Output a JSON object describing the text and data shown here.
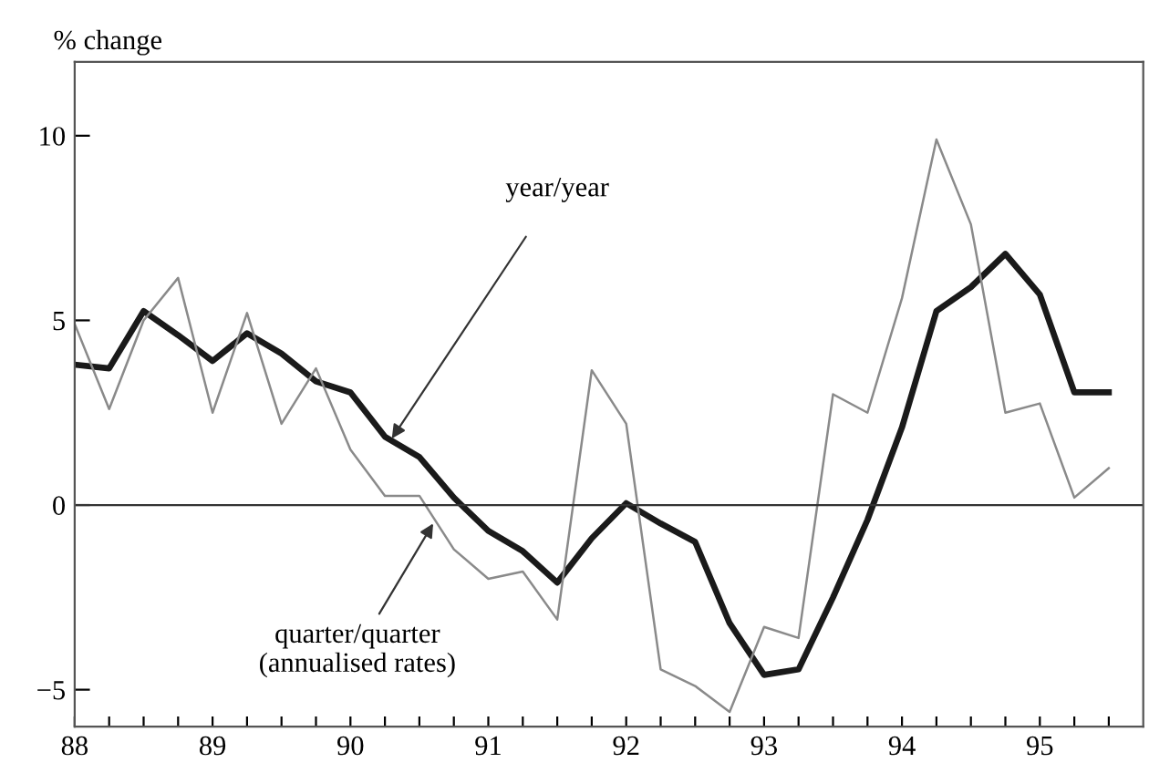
{
  "chart_data": {
    "type": "line",
    "ylabel": "% change",
    "x": [
      88.0,
      88.25,
      88.5,
      88.75,
      89.0,
      89.25,
      89.5,
      89.75,
      90.0,
      90.25,
      90.5,
      90.75,
      91.0,
      91.25,
      91.5,
      91.75,
      92.0,
      92.25,
      92.5,
      92.75,
      93.0,
      93.25,
      93.5,
      93.75,
      94.0,
      94.25,
      94.5,
      94.75,
      95.0,
      95.25,
      95.5
    ],
    "series": [
      {
        "color": "#1a1a1a",
        "values": [
          3.8,
          3.7,
          5.25,
          4.6,
          3.9,
          4.65,
          4.1,
          3.35,
          3.05,
          1.85,
          1.3,
          0.2,
          -0.7,
          -1.25,
          -2.1,
          -0.9,
          0.05,
          -0.5,
          -1.0,
          -3.2,
          -4.6,
          -4.45,
          -2.5,
          -0.4,
          2.1,
          5.25,
          5.9,
          6.8,
          5.7,
          3.05,
          3.05
        ]
      },
      {
        "color": "#8a8a8a",
        "values": [
          4.9,
          2.6,
          5.0,
          6.15,
          2.5,
          5.2,
          2.2,
          3.7,
          1.5,
          0.25,
          0.25,
          -1.2,
          -2.0,
          -1.8,
          -3.1,
          3.65,
          2.2,
          -4.45,
          -4.9,
          -5.6,
          -3.3,
          -3.6,
          3.0,
          2.5,
          5.6,
          9.9,
          7.6,
          2.5,
          2.75,
          0.2,
          1.0
        ]
      }
    ],
    "xlim": [
      88,
      95.75
    ],
    "ylim": [
      -6,
      12
    ],
    "xticks": [
      88,
      {
        "value": 88.25,
        "label": null
      },
      {
        "value": 88.5,
        "label": null
      },
      {
        "value": 88.75,
        "label": null
      },
      89,
      {
        "value": 89.25,
        "label": null
      },
      {
        "value": 89.5,
        "label": null
      },
      {
        "value": 89.75,
        "label": null
      },
      90,
      {
        "value": 90.25,
        "label": null
      },
      {
        "value": 90.5,
        "label": null
      },
      {
        "value": 90.75,
        "label": null
      },
      91,
      {
        "value": 91.25,
        "label": null
      },
      {
        "value": 91.5,
        "label": null
      },
      {
        "value": 91.75,
        "label": null
      },
      92,
      {
        "value": 92.25,
        "label": null
      },
      {
        "value": 92.5,
        "label": null
      },
      {
        "value": 92.75,
        "label": null
      },
      93,
      {
        "value": 93.25,
        "label": null
      },
      {
        "value": 93.5,
        "label": null
      },
      {
        "value": 93.75,
        "label": null
      },
      94,
      {
        "value": 94.25,
        "label": null
      },
      {
        "value": 94.5,
        "label": null
      },
      {
        "value": 94.75,
        "label": null
      },
      95,
      {
        "value": 95.25,
        "label": null
      },
      {
        "value": 95.5,
        "label": null
      }
    ],
    "yticks": [
      -5,
      0,
      5,
      10
    ],
    "ref_lines": [
      {
        "axis": "y",
        "value": 0,
        "color": "#333333"
      }
    ],
    "annotations": [
      {
        "text": "year/year",
        "x": 90.3,
        "y": 1.8
      },
      {
        "text": "quarter/quarter\n(annualised rates)",
        "x": 90.6,
        "y": -0.5
      }
    ],
    "grid": false,
    "legend": false,
    "marker": "none",
    "line_style": "solid"
  }
}
